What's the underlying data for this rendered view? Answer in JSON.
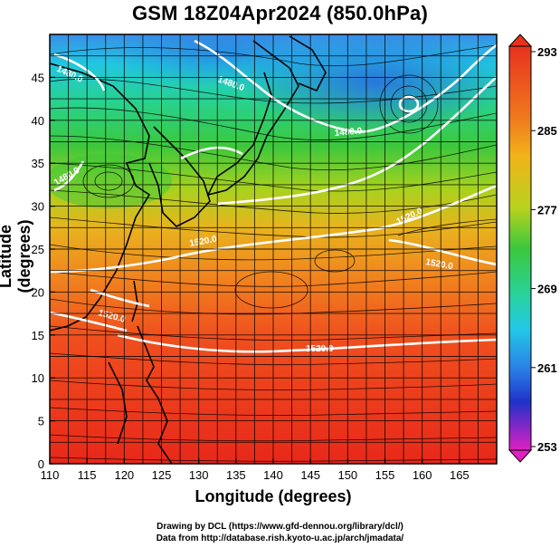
{
  "title": "GSM 18Z04Apr2024 (850.0hPa)",
  "axes": {
    "xlabel": "Longitude (degrees)",
    "ylabel": "Latitude  (degrees)",
    "x_ticks": [
      110,
      115,
      120,
      125,
      130,
      135,
      140,
      145,
      150,
      155,
      160,
      165
    ],
    "y_ticks": [
      0,
      5,
      10,
      15,
      20,
      25,
      30,
      35,
      40,
      45
    ],
    "xlim": [
      110,
      170
    ],
    "ylim": [
      0,
      50
    ],
    "grid": true
  },
  "colorbar": {
    "labels": [
      "293",
      "285",
      "277",
      "269",
      "261",
      "253"
    ],
    "range": [
      253,
      293
    ]
  },
  "contours": {
    "labels": [
      "1480.0",
      "1480.0",
      "1480.0",
      "1480.0",
      "1520.0",
      "1520.0",
      "1520.0",
      "1520.0",
      "1520.0"
    ]
  },
  "credits": {
    "line1": "Drawing by DCL (https://www.gfd-dennou.org/library/dcl/)",
    "line2": "Data from http://database.rish.kyoto-u.ac.jp/arch/jmadata/"
  },
  "colors": {
    "warm": "#e8321e",
    "mid": "#f2a21a",
    "green": "#3cc83c",
    "cyan": "#24c8e6",
    "blue": "#2050d8",
    "magenta": "#d820c8"
  }
}
